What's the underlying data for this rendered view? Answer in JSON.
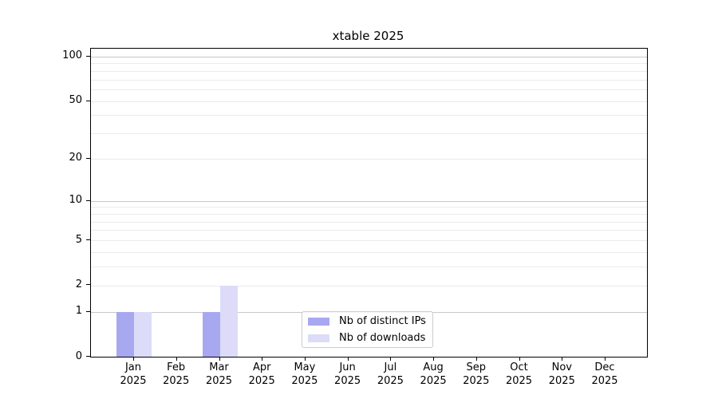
{
  "chart_data": {
    "type": "bar",
    "title": "xtable 2025",
    "categories": [
      "Jan 2025",
      "Feb 2025",
      "Mar 2025",
      "Apr 2025",
      "May 2025",
      "Jun 2025",
      "Jul 2025",
      "Aug 2025",
      "Sep 2025",
      "Oct 2025",
      "Nov 2025",
      "Dec 2025"
    ],
    "series": [
      {
        "name": "Nb of distinct IPs",
        "color": "#a8a8f0",
        "values": [
          1,
          0,
          1,
          0,
          0,
          0,
          0,
          0,
          0,
          0,
          0,
          0
        ]
      },
      {
        "name": "Nb of downloads",
        "color": "#dcdcf9",
        "values": [
          1,
          0,
          2,
          0,
          0,
          0,
          0,
          0,
          0,
          0,
          0,
          0
        ]
      }
    ],
    "xlabel": "",
    "ylabel": "",
    "y_scale": "log1p",
    "ylim": [
      0,
      113
    ],
    "y_ticks": [
      0,
      1,
      2,
      5,
      10,
      20,
      50,
      100
    ],
    "y_major_gridlines": [
      1,
      10,
      100
    ],
    "y_minor_gridlines": [
      2,
      3,
      4,
      5,
      6,
      7,
      8,
      9,
      20,
      30,
      40,
      50,
      60,
      70,
      80,
      90
    ],
    "grid": true,
    "legend_position": "lower-center",
    "colors": {
      "grid_major": "#c8c8c8",
      "grid_minor": "#ebebeb",
      "spine": "#000000",
      "text": "#000000",
      "background": "#ffffff"
    }
  }
}
